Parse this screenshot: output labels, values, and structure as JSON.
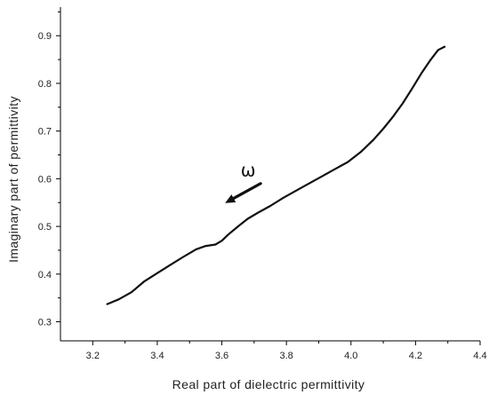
{
  "chart_data": {
    "type": "line",
    "title": "",
    "xlabel": "Real part of dielectric permittivity",
    "ylabel": "Imaginary part of permittivity",
    "xlim": [
      3.1,
      4.4
    ],
    "ylim": [
      0.26,
      0.96
    ],
    "xticks": [
      "3.2",
      "3.4",
      "3.6",
      "3.8",
      "4.0",
      "4.2",
      "4.4"
    ],
    "yticks": [
      "0.3",
      "0.4",
      "0.5",
      "0.6",
      "0.7",
      "0.8",
      "0.9"
    ],
    "grid": false,
    "legend": "none",
    "series": [
      {
        "x": [
          3.245,
          3.28,
          3.32,
          3.36,
          3.4,
          3.44,
          3.48,
          3.52,
          3.55,
          3.58,
          3.6,
          3.62,
          3.65,
          3.68,
          3.71,
          3.75,
          3.79,
          3.83,
          3.87,
          3.91,
          3.95,
          3.99,
          4.03,
          4.07,
          4.1,
          4.13,
          4.16,
          4.19,
          4.22,
          4.245,
          4.27,
          4.29
        ],
        "y": [
          0.337,
          0.347,
          0.362,
          0.385,
          0.402,
          0.419,
          0.436,
          0.452,
          0.459,
          0.462,
          0.47,
          0.483,
          0.5,
          0.516,
          0.528,
          0.543,
          0.56,
          0.575,
          0.59,
          0.605,
          0.62,
          0.635,
          0.656,
          0.682,
          0.705,
          0.73,
          0.758,
          0.79,
          0.823,
          0.848,
          0.87,
          0.877
        ]
      }
    ],
    "annotation": {
      "text": "ω",
      "arrow_from": [
        3.72,
        0.59
      ],
      "arrow_to": [
        3.61,
        0.549
      ]
    },
    "line_color": "#111111"
  }
}
